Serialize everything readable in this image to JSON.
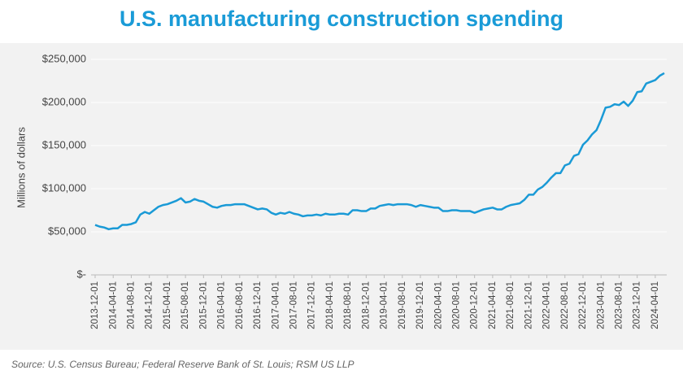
{
  "chart_data": {
    "type": "line",
    "title": "U.S. manufacturing construction spending",
    "ylabel": "Millions of dollars",
    "source": "Source: U.S. Census Bureau; Federal Reserve Bank of St. Louis; RSM US LLP",
    "color": "#1a9ad6",
    "grid": true,
    "ylim": [
      0,
      250000
    ],
    "yticks": [
      {
        "value": 0,
        "label": "$-"
      },
      {
        "value": 50000,
        "label": "$50,000"
      },
      {
        "value": 100000,
        "label": "$100,000"
      },
      {
        "value": 150000,
        "label": "$150,000"
      },
      {
        "value": 200000,
        "label": "$200,000"
      },
      {
        "value": 250000,
        "label": "$250,000"
      }
    ],
    "categories": [
      "2013-12-01",
      null,
      null,
      null,
      "2014-04-01",
      null,
      null,
      null,
      "2014-08-01",
      null,
      null,
      null,
      "2014-12-01",
      null,
      null,
      null,
      "2015-04-01",
      null,
      null,
      null,
      "2015-08-01",
      null,
      null,
      null,
      "2015-12-01",
      null,
      null,
      null,
      "2016-04-01",
      null,
      null,
      null,
      "2016-08-01",
      null,
      null,
      null,
      "2016-12-01",
      null,
      null,
      null,
      "2017-04-01",
      null,
      null,
      null,
      "2017-08-01",
      null,
      null,
      null,
      "2017-12-01",
      null,
      null,
      null,
      "2018-04-01",
      null,
      null,
      null,
      "2018-08-01",
      null,
      null,
      null,
      "2018-12-01",
      null,
      null,
      null,
      "2019-04-01",
      null,
      null,
      null,
      "2019-08-01",
      null,
      null,
      null,
      "2019-12-01",
      null,
      null,
      null,
      "2020-04-01",
      null,
      null,
      null,
      "2020-08-01",
      null,
      null,
      null,
      "2020-12-01",
      null,
      null,
      null,
      "2021-04-01",
      null,
      null,
      null,
      "2021-08-01",
      null,
      null,
      null,
      "2021-12-01",
      null,
      null,
      null,
      "2022-04-01",
      null,
      null,
      null,
      "2022-08-01",
      null,
      null,
      null,
      "2022-12-01",
      null,
      null,
      null,
      "2023-04-01",
      null,
      null,
      null,
      "2023-08-01",
      null,
      null,
      null,
      "2023-12-01",
      null,
      null,
      null,
      "2024-04-01",
      null,
      null
    ],
    "values": [
      58000,
      56000,
      55000,
      53000,
      54000,
      54000,
      58000,
      58000,
      59000,
      61000,
      70000,
      73000,
      71000,
      75000,
      79000,
      81000,
      82000,
      84000,
      86000,
      89000,
      84000,
      85000,
      88000,
      86000,
      85000,
      82000,
      79000,
      78000,
      80000,
      81000,
      81000,
      82000,
      82000,
      82000,
      80000,
      78000,
      76000,
      77000,
      76000,
      72000,
      70000,
      72000,
      71000,
      73000,
      71000,
      70000,
      68000,
      69000,
      69000,
      70000,
      69000,
      71000,
      70000,
      70000,
      71000,
      71000,
      70000,
      75000,
      75000,
      74000,
      74000,
      77000,
      77000,
      80000,
      81000,
      82000,
      81000,
      82000,
      82000,
      82000,
      81000,
      79000,
      81000,
      80000,
      79000,
      78000,
      78000,
      74000,
      74000,
      75000,
      75000,
      74000,
      74000,
      74000,
      72000,
      74000,
      76000,
      77000,
      78000,
      76000,
      76000,
      79000,
      81000,
      82000,
      83000,
      87000,
      93000,
      93000,
      99000,
      102000,
      107000,
      113000,
      118000,
      118000,
      127000,
      129000,
      138000,
      140000,
      151000,
      156000,
      163000,
      168000,
      180000,
      194000,
      195000,
      198000,
      197000,
      201000,
      196000,
      202000,
      212000,
      213000,
      222000,
      224000,
      226000,
      231000,
      234000
    ]
  }
}
